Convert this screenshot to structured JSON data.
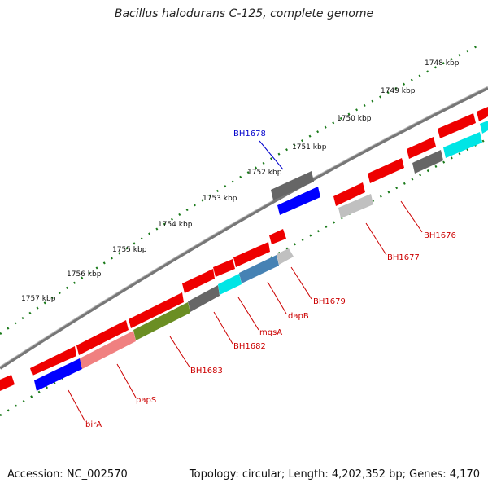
{
  "title": "Bacillus halodurans C-125, complete genome",
  "accession_text": "Accession: NC_002570",
  "summary_text": "Topology: circular; Length: 4,202,352 bp; Genes: 4,170",
  "kbp_labels": [
    "1748 kbp",
    "1749 kbp",
    "1750 kbp",
    "1751 kbp",
    "1752 kbp",
    "1753 kbp",
    "1754 kbp",
    "1755 kbp",
    "1756 kbp",
    "1757 kbp"
  ],
  "gene_labels": [
    "BH1678",
    "BH1676",
    "BH1677",
    "BH1679",
    "dapB",
    "mgsA",
    "BH1682",
    "BH1683",
    "papS",
    "birA"
  ],
  "colors": {
    "forward_gene": "#ff0000",
    "reverse_gene": "#ff0000",
    "backbone": "#888888",
    "tick_dots": "#1a7a1a",
    "label_red": "#cc0000",
    "label_blue": "#0000cc",
    "cds_blue": "#0000ff",
    "cds_cyan": "#00e5e5",
    "cds_grey": "#666666",
    "cds_lightgrey": "#c0c0c0",
    "cds_olive": "#6b8e23",
    "cds_steel": "#4682b4",
    "cds_pink": "#f08080"
  }
}
